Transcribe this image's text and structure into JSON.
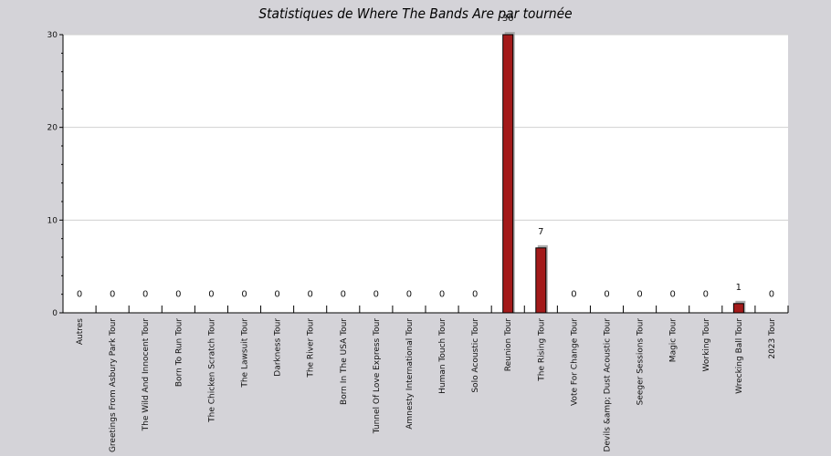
{
  "chart_data": {
    "type": "bar",
    "title": "Statistiques de Where The Bands Are par tournée",
    "xlabel": "",
    "ylabel": "",
    "ylim": [
      0,
      30
    ],
    "yticks": [
      0,
      10,
      20,
      30
    ],
    "grid": true,
    "colors": {
      "bar": "#a31a1a",
      "shadow": "#a0a0a0",
      "plot_bg": "#ffffff",
      "page_bg": "#d4d3d8",
      "grid": "#d0d0d0"
    },
    "categories": [
      "Autres",
      "Greetings From Asbury Park Tour",
      "The Wild And Innocent Tour",
      "Born To Run Tour",
      "The Chicken Scratch Tour",
      "The Lawsuit Tour",
      "Darkness Tour",
      "The River Tour",
      "Born In The USA Tour",
      "Tunnel Of Love Express Tour",
      "Amnesty International Tour",
      "Human Touch Tour",
      "Solo Acoustic Tour",
      "Reunion Tour",
      "The Rising Tour",
      "Vote For Change Tour",
      "Devils &amp; Dust Acoustic Tour",
      "Seeger Sessions Tour",
      "Magic Tour",
      "Working Tour",
      "Wrecking Ball Tour",
      "2023 Tour"
    ],
    "values": [
      0,
      0,
      0,
      0,
      0,
      0,
      0,
      0,
      0,
      0,
      0,
      0,
      0,
      30,
      7,
      0,
      0,
      0,
      0,
      0,
      1,
      0
    ],
    "data_labels": [
      "0",
      "0",
      "0",
      "0",
      "0",
      "0",
      "0",
      "0",
      "0",
      "0",
      "0",
      "0",
      "0",
      "30",
      "7",
      "0",
      "0",
      "0",
      "0",
      "0",
      "1",
      "0"
    ]
  }
}
